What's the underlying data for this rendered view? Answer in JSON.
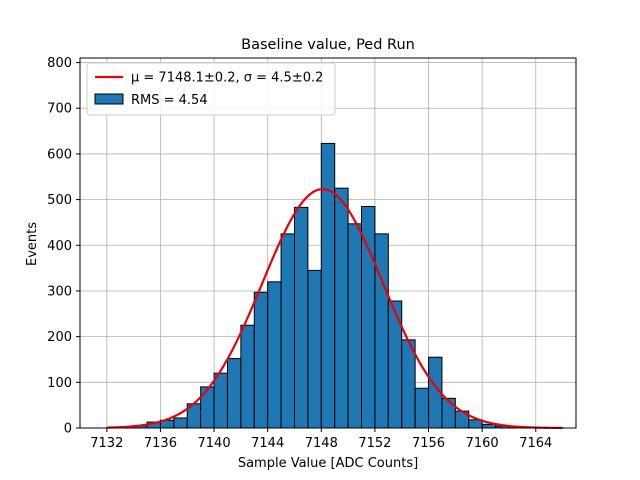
{
  "chart_data": {
    "type": "bar",
    "title": "Baseline value, Ped Run",
    "xlabel": "Sample Value [ADC Counts]",
    "ylabel": "Events",
    "xlim": [
      7130,
      7167
    ],
    "ylim": [
      0,
      810
    ],
    "x_ticks": [
      7132,
      7136,
      7140,
      7144,
      7148,
      7152,
      7156,
      7160,
      7164
    ],
    "y_ticks": [
      0,
      100,
      200,
      300,
      400,
      500,
      600,
      700,
      800
    ],
    "grid": true,
    "legend_position": "top-left",
    "bin_edges": [
      7132,
      7133,
      7134,
      7135,
      7136,
      7137,
      7138,
      7139,
      7140,
      7141,
      7142,
      7143,
      7144,
      7145,
      7146,
      7147,
      7148,
      7149,
      7150,
      7151,
      7152,
      7153,
      7154,
      7155,
      7156,
      7157,
      7158,
      7159,
      7160,
      7161,
      7162,
      7163,
      7164,
      7165,
      7166
    ],
    "counts": [
      0,
      2,
      5,
      13,
      17,
      22,
      53,
      90,
      120,
      152,
      225,
      297,
      320,
      425,
      483,
      345,
      623,
      525,
      447,
      485,
      425,
      278,
      193,
      87,
      155,
      65,
      37,
      18,
      8,
      4,
      1,
      0,
      0,
      0
    ],
    "histogram_series": {
      "name": "RMS = 4.54",
      "color": "#1f77b4",
      "edge_color": "#000000"
    },
    "fit_series": {
      "name": "μ = 7148.1±0.2, σ = 4.5±0.2",
      "color": "#e8000b",
      "type": "gaussian",
      "mu": 7148.1,
      "sigma": 4.5,
      "amplitude": 523,
      "x_range": [
        7132,
        7166
      ]
    }
  }
}
